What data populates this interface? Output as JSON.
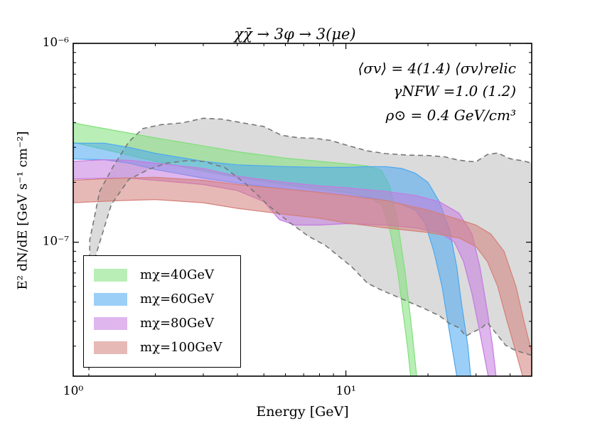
{
  "chart_data": {
    "type": "area",
    "title": "χχ̄ → 3φ → 3(μe)",
    "xlabel": "Energy [GeV]",
    "ylabel": "E² dN/dE [GeV s⁻¹ cm⁻²]",
    "xscale": "log",
    "yscale": "log",
    "xlim": [
      1.0,
      48.0
    ],
    "ylim": [
      2.12e-08,
      1e-06
    ],
    "x_ticks": [
      {
        "value": 1,
        "label": "10⁰"
      },
      {
        "value": 10,
        "label": "10¹"
      }
    ],
    "y_ticks": [
      {
        "value": 1e-07,
        "label": "10⁻⁷"
      },
      {
        "value": 1e-06,
        "label": "10⁻⁶"
      }
    ],
    "annotations": [
      "⟨σv⟩ = 4(1.4) ⟨σv⟩relic",
      "γNFW =1.0 (1.2)",
      "ρ⊙ = 0.4 GeV/cm³"
    ],
    "legend_position": "lower-left",
    "data_region": {
      "name": "data-envelope",
      "color": "#d9d9d9",
      "upper": [
        [
          1.14,
          2.06e-08
        ],
        [
          1.15,
          1.03e-07
        ],
        [
          1.25,
          1.8e-07
        ],
        [
          1.4,
          2.4e-07
        ],
        [
          1.6,
          3.2e-07
        ],
        [
          1.8,
          3.73e-07
        ],
        [
          2.1,
          3.9e-07
        ],
        [
          2.5,
          3.98e-07
        ],
        [
          3.0,
          4.2e-07
        ],
        [
          3.5,
          4.16e-07
        ],
        [
          4.2,
          3.98e-07
        ],
        [
          5.0,
          3.82e-07
        ],
        [
          5.8,
          3.45e-07
        ],
        [
          6.7,
          3.35e-07
        ],
        [
          7.7,
          3.33e-07
        ],
        [
          8.8,
          3.25e-07
        ],
        [
          10.2,
          3.06e-07
        ],
        [
          12.0,
          2.88e-07
        ],
        [
          14.0,
          2.79e-07
        ],
        [
          17.0,
          2.74e-07
        ],
        [
          20.0,
          2.73e-07
        ],
        [
          23.0,
          2.69e-07
        ],
        [
          25.5,
          2.6e-07
        ],
        [
          28.0,
          2.55e-07
        ],
        [
          30.0,
          2.54e-07
        ],
        [
          33.0,
          2.76e-07
        ],
        [
          36.0,
          2.81e-07
        ],
        [
          40.0,
          2.63e-07
        ],
        [
          45.0,
          2.56e-07
        ],
        [
          48.0,
          2.5e-07
        ]
      ],
      "lower": [
        [
          1.14,
          2.06e-08
        ],
        [
          1.2,
          8.3e-08
        ],
        [
          1.38,
          1.55e-07
        ],
        [
          1.6,
          2.07e-07
        ],
        [
          1.9,
          2.33e-07
        ],
        [
          2.2,
          2.5e-07
        ],
        [
          2.6,
          2.57e-07
        ],
        [
          3.0,
          2.55e-07
        ],
        [
          3.6,
          2.37e-07
        ],
        [
          4.3,
          1.96e-07
        ],
        [
          5.2,
          1.53e-07
        ],
        [
          6.2,
          1.26e-07
        ],
        [
          7.3,
          1.07e-07
        ],
        [
          8.4,
          9.65e-08
        ],
        [
          9.5,
          8.41e-08
        ],
        [
          10.5,
          7.52e-08
        ],
        [
          12.0,
          6.22e-08
        ],
        [
          13.5,
          5.74e-08
        ],
        [
          15.0,
          5.4e-08
        ],
        [
          17.0,
          5.01e-08
        ],
        [
          19.5,
          4.62e-08
        ],
        [
          22.0,
          4.27e-08
        ],
        [
          24.0,
          3.9e-08
        ],
        [
          26.0,
          3.71e-08
        ],
        [
          27.5,
          3.37e-08
        ],
        [
          29.5,
          3.55e-08
        ],
        [
          31.5,
          3.71e-08
        ],
        [
          33.0,
          3.94e-08
        ],
        [
          35.0,
          3.57e-08
        ],
        [
          38.5,
          3.03e-08
        ],
        [
          42.0,
          2.85e-08
        ],
        [
          48.0,
          2.7e-08
        ]
      ]
    },
    "series": [
      {
        "name": "mχ=40GeV",
        "color": "#7fe07a",
        "upper": [
          [
            1.0,
            3.98e-07
          ],
          [
            1.5,
            3.6e-07
          ],
          [
            2.0,
            3.35e-07
          ],
          [
            3.0,
            3.05e-07
          ],
          [
            4.0,
            2.85e-07
          ],
          [
            6.0,
            2.65e-07
          ],
          [
            8.0,
            2.55e-07
          ],
          [
            10.0,
            2.48e-07
          ],
          [
            12.0,
            2.42e-07
          ],
          [
            13.5,
            2.3e-07
          ],
          [
            14.5,
            1.9e-07
          ],
          [
            15.5,
            1.25e-07
          ],
          [
            16.5,
            7e-08
          ],
          [
            17.5,
            3.5e-08
          ],
          [
            18.4,
            1.8e-08
          ]
        ],
        "lower": [
          [
            1.0,
            3.18e-07
          ],
          [
            1.5,
            2.8e-07
          ],
          [
            2.0,
            2.55e-07
          ],
          [
            3.0,
            2.28e-07
          ],
          [
            4.0,
            2.12e-07
          ],
          [
            6.0,
            1.95e-07
          ],
          [
            8.0,
            1.85e-07
          ],
          [
            10.0,
            1.78e-07
          ],
          [
            12.0,
            1.7e-07
          ],
          [
            13.5,
            1.55e-07
          ],
          [
            14.5,
            1.15e-07
          ],
          [
            15.5,
            7e-08
          ],
          [
            16.0,
            5e-08
          ],
          [
            16.8,
            3e-08
          ],
          [
            17.5,
            1.8e-08
          ]
        ]
      },
      {
        "name": "mχ=60GeV",
        "color": "#4aa8f0",
        "upper": [
          [
            1.0,
            3.15e-07
          ],
          [
            1.3,
            3.15e-07
          ],
          [
            1.6,
            3e-07
          ],
          [
            2.0,
            2.8e-07
          ],
          [
            3.0,
            2.55e-07
          ],
          [
            4.0,
            2.45e-07
          ],
          [
            6.0,
            2.4e-07
          ],
          [
            8.0,
            2.38e-07
          ],
          [
            10.0,
            2.38e-07
          ],
          [
            12.0,
            2.4e-07
          ],
          [
            14.0,
            2.4e-07
          ],
          [
            16.0,
            2.35e-07
          ],
          [
            18.0,
            2.22e-07
          ],
          [
            20.0,
            2e-07
          ],
          [
            22.0,
            1.6e-07
          ],
          [
            24.0,
            1.15e-07
          ],
          [
            25.5,
            7.5e-08
          ],
          [
            26.5,
            5e-08
          ],
          [
            28.0,
            3e-08
          ],
          [
            29.0,
            1.8e-08
          ]
        ],
        "lower": [
          [
            1.0,
            2.62e-07
          ],
          [
            1.3,
            2.6e-07
          ],
          [
            1.6,
            2.5e-07
          ],
          [
            2.0,
            2.32e-07
          ],
          [
            3.0,
            2.1e-07
          ],
          [
            4.0,
            1.98e-07
          ],
          [
            6.0,
            1.85e-07
          ],
          [
            8.0,
            1.78e-07
          ],
          [
            10.0,
            1.72e-07
          ],
          [
            12.0,
            1.68e-07
          ],
          [
            14.0,
            1.62e-07
          ],
          [
            16.0,
            1.55e-07
          ],
          [
            18.0,
            1.45e-07
          ],
          [
            19.5,
            1.25e-07
          ],
          [
            21.0,
            9e-08
          ],
          [
            22.5,
            6e-08
          ],
          [
            24.0,
            3.5e-08
          ],
          [
            25.0,
            2.5e-08
          ],
          [
            26.0,
            1.8e-08
          ]
        ]
      },
      {
        "name": "mχ=80GeV",
        "color": "#c57ae0",
        "upper": [
          [
            1.0,
            2.55e-07
          ],
          [
            1.3,
            2.6e-07
          ],
          [
            1.6,
            2.58e-07
          ],
          [
            2.0,
            2.5e-07
          ],
          [
            3.0,
            2.35e-07
          ],
          [
            4.0,
            2.15e-07
          ],
          [
            6.0,
            2e-07
          ],
          [
            8.0,
            1.92e-07
          ],
          [
            10.0,
            1.88e-07
          ],
          [
            14.0,
            1.8e-07
          ],
          [
            18.0,
            1.72e-07
          ],
          [
            22.0,
            1.6e-07
          ],
          [
            26.0,
            1.4e-07
          ],
          [
            29.0,
            1.1e-07
          ],
          [
            31.0,
            7.5e-08
          ],
          [
            33.0,
            4.5e-08
          ],
          [
            34.5,
            3e-08
          ],
          [
            36.0,
            1.8e-08
          ]
        ],
        "lower": [
          [
            1.0,
            2.08e-07
          ],
          [
            1.3,
            2.1e-07
          ],
          [
            1.6,
            2.1e-07
          ],
          [
            2.0,
            2.05e-07
          ],
          [
            3.0,
            1.95e-07
          ],
          [
            4.0,
            1.82e-07
          ],
          [
            5.0,
            1.6e-07
          ],
          [
            5.7,
            1.3e-07
          ],
          [
            6.5,
            1.22e-07
          ],
          [
            8.0,
            1.22e-07
          ],
          [
            10.0,
            1.24e-07
          ],
          [
            14.0,
            1.22e-07
          ],
          [
            18.0,
            1.18e-07
          ],
          [
            22.0,
            1.12e-07
          ],
          [
            25.0,
            1e-07
          ],
          [
            27.0,
            8e-08
          ],
          [
            29.0,
            5.5e-08
          ],
          [
            31.0,
            3.5e-08
          ],
          [
            32.5,
            2.5e-08
          ],
          [
            34.0,
            1.8e-08
          ]
        ]
      },
      {
        "name": "mχ=100GeV",
        "color": "#d4807a",
        "upper": [
          [
            1.0,
            2.05e-07
          ],
          [
            1.5,
            2.1e-07
          ],
          [
            2.0,
            2.12e-07
          ],
          [
            3.0,
            2.05e-07
          ],
          [
            4.0,
            1.95e-07
          ],
          [
            6.0,
            1.85e-07
          ],
          [
            8.0,
            1.78e-07
          ],
          [
            10.0,
            1.72e-07
          ],
          [
            14.0,
            1.62e-07
          ],
          [
            20.0,
            1.45e-07
          ],
          [
            26.0,
            1.3e-07
          ],
          [
            30.0,
            1.22e-07
          ],
          [
            34.0,
            1.1e-07
          ],
          [
            38.0,
            9e-08
          ],
          [
            42.0,
            6e-08
          ],
          [
            45.0,
            4e-08
          ],
          [
            48.0,
            2.8e-08
          ]
        ],
        "lower": [
          [
            1.0,
            1.58e-07
          ],
          [
            1.5,
            1.62e-07
          ],
          [
            2.0,
            1.64e-07
          ],
          [
            3.0,
            1.58e-07
          ],
          [
            4.0,
            1.48e-07
          ],
          [
            6.0,
            1.38e-07
          ],
          [
            8.0,
            1.32e-07
          ],
          [
            10.0,
            1.25e-07
          ],
          [
            14.0,
            1.18e-07
          ],
          [
            20.0,
            1.12e-07
          ],
          [
            26.0,
            1.05e-07
          ],
          [
            30.0,
            9.5e-08
          ],
          [
            33.0,
            8e-08
          ],
          [
            36.0,
            6e-08
          ],
          [
            39.0,
            4e-08
          ],
          [
            42.0,
            2.8e-08
          ],
          [
            45.0,
            2e-08
          ],
          [
            48.0,
            1.8e-08
          ]
        ]
      }
    ]
  }
}
